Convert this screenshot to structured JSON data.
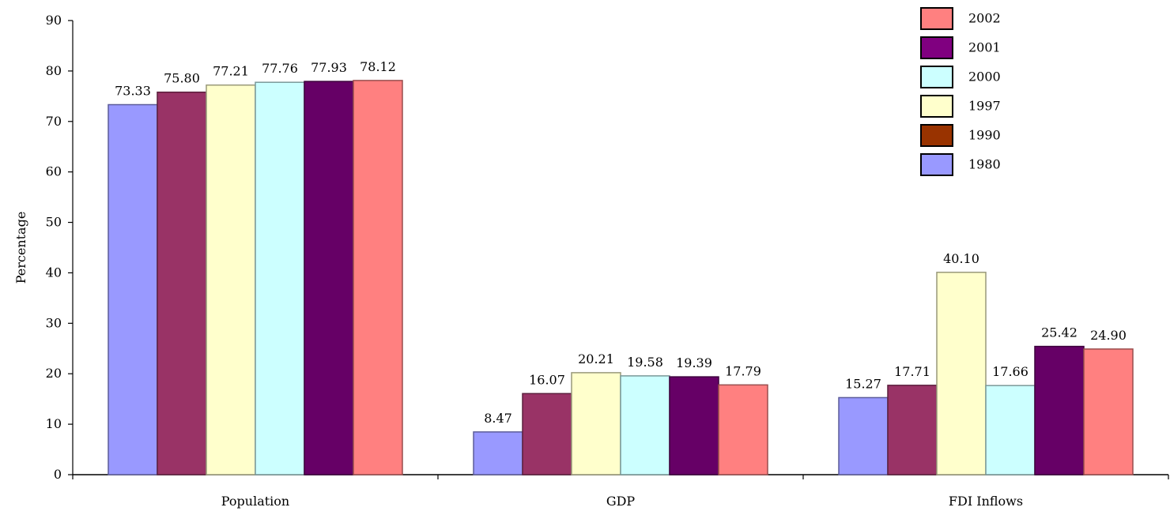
{
  "chart_data": {
    "type": "bar",
    "title": "",
    "ylabel": "Percentage",
    "xlabel": "",
    "ylim": [
      0,
      90
    ],
    "yticks": [
      0,
      10,
      20,
      30,
      40,
      50,
      60,
      70,
      80,
      90
    ],
    "categories": [
      "Population",
      "GDP",
      "FDI Inflows"
    ],
    "series": [
      {
        "name": "1980",
        "color": "#9999ff",
        "values": [
          73.33,
          8.47,
          15.27
        ],
        "labels": [
          "73.33",
          "8.47",
          "15.27"
        ]
      },
      {
        "name": "1990",
        "color": "#993366",
        "values": [
          75.8,
          16.07,
          17.71
        ],
        "labels": [
          "75.80",
          "16.07",
          "17.71"
        ]
      },
      {
        "name": "1997",
        "color": "#ffffcc",
        "values": [
          77.21,
          20.21,
          40.1
        ],
        "labels": [
          "77.21",
          "20.21",
          "40.10"
        ]
      },
      {
        "name": "2000",
        "color": "#ccffff",
        "values": [
          77.76,
          19.58,
          17.66
        ],
        "labels": [
          "77.76",
          "19.58",
          "17.66"
        ]
      },
      {
        "name": "2001",
        "color": "#660066",
        "values": [
          77.93,
          19.39,
          25.42
        ],
        "labels": [
          "77.93",
          "19.39",
          "25.42"
        ]
      },
      {
        "name": "2002",
        "color": "#ff8080",
        "values": [
          78.12,
          17.79,
          24.9
        ],
        "labels": [
          "78.12",
          "17.79",
          "24.90"
        ]
      }
    ],
    "legend": {
      "position": "top-right",
      "items": [
        {
          "name": "2002",
          "color": "#ff8080"
        },
        {
          "name": "2001",
          "color": "#800080"
        },
        {
          "name": "2000",
          "color": "#ccffff"
        },
        {
          "name": "1997",
          "color": "#ffffcc"
        },
        {
          "name": "1990",
          "color": "#993300"
        },
        {
          "name": "1980",
          "color": "#9999ff"
        }
      ]
    },
    "grid": false
  }
}
